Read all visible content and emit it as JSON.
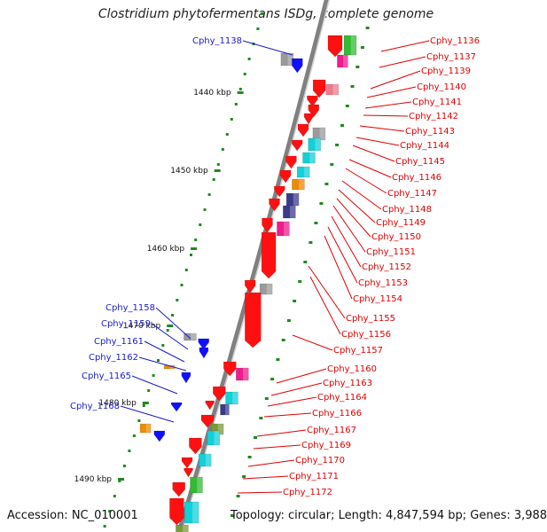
{
  "map": {
    "title": "Clostridium phytofermentans ISDg, complete genome",
    "accession": "Accession: NC_010001",
    "topology": "Topology: circular; Length: 4,847,594 bp; Genes: 3,988",
    "scale_labels": [
      "1440 kbp",
      "1450 kbp",
      "1460 kbp",
      "1470 kbp",
      "1480 kbp",
      "1490 kbp"
    ],
    "left_genes": [
      "Cphy_1138",
      "Cphy_1158",
      "Cphy_1159",
      "Cphy_1161",
      "Cphy_1162",
      "Cphy_1165",
      "Cphy_1168"
    ],
    "right_genes": [
      "Cphy_1136",
      "Cphy_1137",
      "Cphy_1139",
      "Cphy_1140",
      "Cphy_1141",
      "Cphy_1142",
      "Cphy_1143",
      "Cphy_1144",
      "Cphy_1145",
      "Cphy_1146",
      "Cphy_1147",
      "Cphy_1148",
      "Cphy_1149",
      "Cphy_1150",
      "Cphy_1151",
      "Cphy_1152",
      "Cphy_1153",
      "Cphy_1154",
      "Cphy_1155",
      "Cphy_1156",
      "Cphy_1157",
      "Cphy_1160",
      "Cphy_1163",
      "Cphy_1164",
      "Cphy_1166",
      "Cphy_1167",
      "Cphy_1169",
      "Cphy_1170",
      "Cphy_1171",
      "Cphy_1172"
    ],
    "colors": {
      "left_label": "#1a1ad0",
      "right_label": "#e00000",
      "backbone": "#808080",
      "tick": "#1f8a1f",
      "red_gene": "#ff1010",
      "cyan_gene": "#11d0d8",
      "magenta_gene": "#ee1c8c",
      "green_gene": "#33bb33",
      "blue_gene": "#1010ff",
      "gray_gene": "#9a9a9a",
      "orange_gene": "#f08a00",
      "navy_gene": "#3a3a8a",
      "olive_gene": "#7a9a3a",
      "pink_gene": "#f07a8a"
    }
  }
}
